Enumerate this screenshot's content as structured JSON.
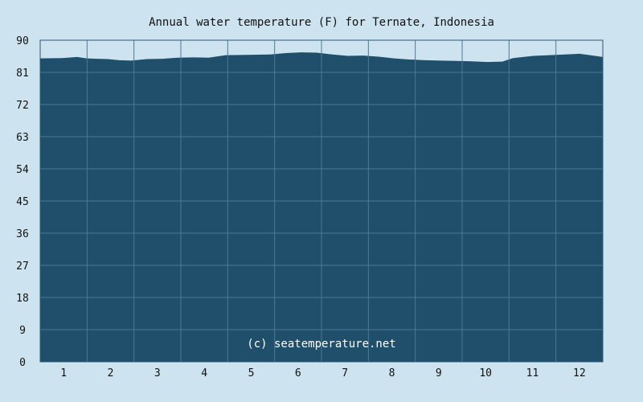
{
  "chart_data": {
    "type": "area",
    "title": "Annual water temperature (F) for Ternate, Indonesia",
    "watermark": "(c) seatemperature.net",
    "xlabel": "",
    "ylabel": "",
    "ylim": [
      0,
      90
    ],
    "y_ticks": [
      0,
      9,
      18,
      27,
      36,
      45,
      54,
      63,
      72,
      81,
      90
    ],
    "x_ticks": [
      "1",
      "2",
      "3",
      "4",
      "5",
      "6",
      "7",
      "8",
      "9",
      "10",
      "11",
      "12"
    ],
    "xlim": [
      1,
      365
    ],
    "grid": true,
    "series": [
      {
        "values": [
          [
            1,
            84.9
          ],
          [
            15,
            85.0
          ],
          [
            25,
            85.3
          ],
          [
            31,
            84.9
          ],
          [
            45,
            84.7
          ],
          [
            52,
            84.4
          ],
          [
            60,
            84.3
          ],
          [
            70,
            84.7
          ],
          [
            80,
            84.8
          ],
          [
            90,
            85.1
          ],
          [
            100,
            85.2
          ],
          [
            110,
            85.1
          ],
          [
            121,
            85.8
          ],
          [
            135,
            85.9
          ],
          [
            150,
            86.0
          ],
          [
            160,
            86.4
          ],
          [
            170,
            86.6
          ],
          [
            180,
            86.5
          ],
          [
            190,
            86.0
          ],
          [
            200,
            85.6
          ],
          [
            210,
            85.7
          ],
          [
            220,
            85.4
          ],
          [
            230,
            84.9
          ],
          [
            240,
            84.6
          ],
          [
            250,
            84.4
          ],
          [
            260,
            84.3
          ],
          [
            270,
            84.2
          ],
          [
            280,
            84.1
          ],
          [
            290,
            83.9
          ],
          [
            300,
            84.0
          ],
          [
            307,
            85.0
          ],
          [
            320,
            85.6
          ],
          [
            335,
            85.9
          ],
          [
            350,
            86.2
          ],
          [
            360,
            85.6
          ],
          [
            365,
            85.3
          ]
        ]
      }
    ],
    "colors": {
      "background": "#cde3ef",
      "plot_fill": "#1f4f6b",
      "grid": "#4a7a95",
      "axis": "#2a5a78"
    }
  }
}
